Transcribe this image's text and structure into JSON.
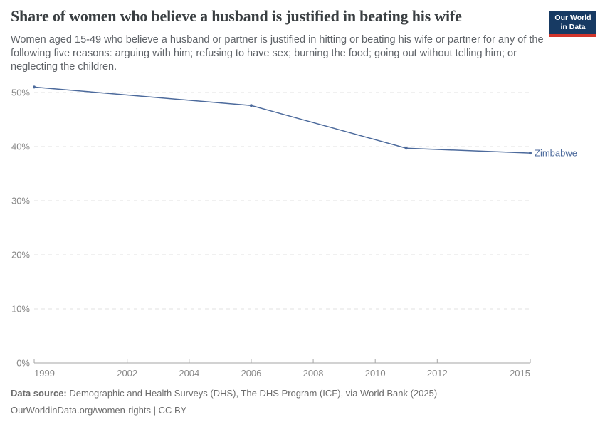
{
  "header": {
    "title": "Share of women who believe a husband is justified in beating his wife",
    "subtitle": "Women aged 15-49 who believe a husband or partner is justified in hitting or beating his wife or partner for any of the following five reasons: arguing with him; refusing to have sex; burning the food; going out without telling him; or neglecting the children.",
    "logo": {
      "line1": "Our World",
      "line2": "in Data"
    }
  },
  "chart_data": {
    "type": "line",
    "title": "Share of women who believe a husband is justified in beating his wife",
    "xlabel": "",
    "ylabel": "",
    "x_range": [
      1999,
      2015
    ],
    "ylim": [
      0,
      52
    ],
    "x_ticks": [
      1999,
      2002,
      2004,
      2006,
      2008,
      2010,
      2012,
      2015
    ],
    "y_ticks": [
      0,
      10,
      20,
      30,
      40,
      50
    ],
    "y_tick_format": "percent",
    "grid": "horizontal-dashed",
    "legend_position": "end-of-line-label",
    "series": [
      {
        "name": "Zimbabwe",
        "color": "#4c6a9c",
        "points": [
          {
            "year": 1999,
            "value": 51.0
          },
          {
            "year": 2006,
            "value": 47.6
          },
          {
            "year": 2011,
            "value": 39.7
          },
          {
            "year": 2015,
            "value": 38.8
          }
        ]
      }
    ]
  },
  "footer": {
    "datasource_label": "Data source:",
    "datasource_text": " Demographic and Health Surveys (DHS), The DHS Program (ICF), via World Bank (2025)",
    "license_url": "OurWorldinData.org/women-rights",
    "license_suffix": " | CC BY"
  },
  "colors": {
    "series_blue": "#4c6a9c",
    "grid": "#e0e0e0",
    "axis": "#a5a5a5",
    "tick_label": "#888888",
    "title_text": "#3a3f42",
    "subtitle_text": "#5f6368",
    "footer_text": "#6c6c6c",
    "logo_bg": "#173a63",
    "logo_accent": "#d2352b"
  }
}
